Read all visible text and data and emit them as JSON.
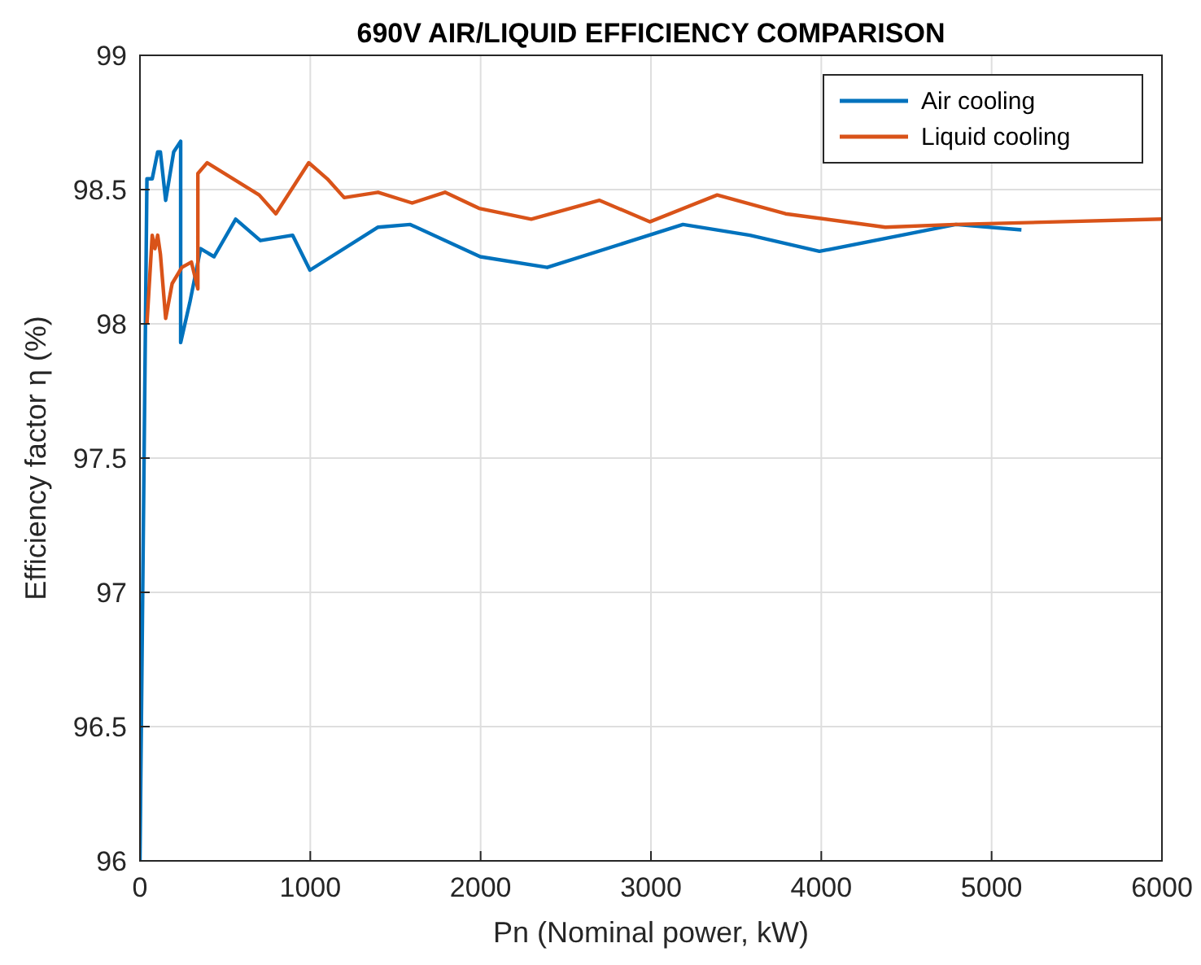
{
  "chart_data": {
    "type": "line",
    "title": "690V AIR/LIQUID  EFFICIENCY COMPARISON",
    "xlabel": "Pn (Nominal power, kW)",
    "ylabel": "Efficiency factor η (%)",
    "series": [
      {
        "name": "Air cooling",
        "color": "#0072bd",
        "x": [
          0,
          41,
          72,
          104,
          120,
          151,
          198,
          239,
          239,
          293,
          356,
          435,
          562,
          707,
          896,
          998,
          1398,
          1587,
          1998,
          2391,
          3188,
          3581,
          3989,
          4790,
          5175
        ],
        "values": [
          96,
          98.54,
          98.54,
          98.64,
          98.64,
          98.46,
          98.64,
          98.68,
          97.93,
          98.08,
          98.28,
          98.25,
          98.39,
          98.31,
          98.33,
          98.2,
          98.36,
          98.37,
          98.25,
          98.21,
          98.37,
          98.33,
          98.27,
          98.37,
          98.35
        ]
      },
      {
        "name": "Liquid cooling",
        "color": "#d95319",
        "x": [
          41,
          72,
          88,
          104,
          120,
          151,
          189,
          246,
          302,
          340,
          340,
          395,
          700,
          798,
          991,
          1100,
          1199,
          1398,
          1598,
          1791,
          1991,
          2297,
          2698,
          2993,
          3389,
          3790,
          4376,
          4784,
          6000
        ],
        "values": [
          98,
          98.33,
          98.28,
          98.33,
          98.26,
          98.02,
          98.15,
          98.21,
          98.23,
          98.13,
          98.56,
          98.6,
          98.48,
          98.41,
          98.6,
          98.54,
          98.47,
          98.49,
          98.45,
          98.49,
          98.43,
          98.39,
          98.46,
          98.38,
          98.48,
          98.41,
          98.36,
          98.37,
          98.39
        ]
      }
    ],
    "xlim": [
      0,
      6000
    ],
    "xticks": [
      0,
      1000,
      2000,
      3000,
      4000,
      5000,
      6000
    ],
    "ylim": [
      96,
      99
    ],
    "yticks": [
      96,
      96.5,
      97,
      97.5,
      98,
      98.5,
      99
    ],
    "grid": true,
    "legend": "top right",
    "marker": "none",
    "line_style": "solid"
  }
}
